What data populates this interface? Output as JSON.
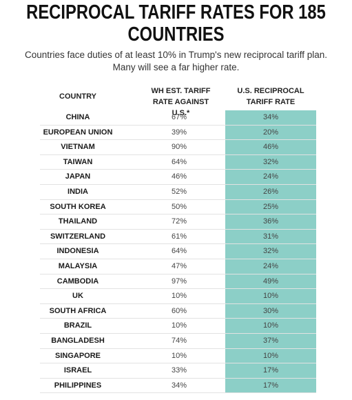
{
  "header": {
    "title": "RECIPROCAL TARIFF RATES FOR 185 COUNTRIES",
    "subtitle": "Countries face duties of at least 10% in Trump's new reciprocal tariff plan. Many will see a far higher rate."
  },
  "table": {
    "columns": [
      "COUNTRY",
      "WH EST. TARIFF RATE AGAINST U.S.*",
      "U.S. RECIPROCAL TARIFF RATE"
    ],
    "rows": [
      [
        "CHINA",
        "67%",
        "34%"
      ],
      [
        "EUROPEAN UNION",
        "39%",
        "20%"
      ],
      [
        "VIETNAM",
        "90%",
        "46%"
      ],
      [
        "TAIWAN",
        "64%",
        "32%"
      ],
      [
        "JAPAN",
        "46%",
        "24%"
      ],
      [
        "INDIA",
        "52%",
        "26%"
      ],
      [
        "SOUTH KOREA",
        "50%",
        "25%"
      ],
      [
        "THAILAND",
        "72%",
        "36%"
      ],
      [
        "SWITZERLAND",
        "61%",
        "31%"
      ],
      [
        "INDONESIA",
        "64%",
        "32%"
      ],
      [
        "MALAYSIA",
        "47%",
        "24%"
      ],
      [
        "CAMBODIA",
        "97%",
        "49%"
      ],
      [
        "UK",
        "10%",
        "10%"
      ],
      [
        "SOUTH AFRICA",
        "60%",
        "30%"
      ],
      [
        "BRAZIL",
        "10%",
        "10%"
      ],
      [
        "BANGLADESH",
        "74%",
        "37%"
      ],
      [
        "SINGAPORE",
        "10%",
        "10%"
      ],
      [
        "ISRAEL",
        "33%",
        "17%"
      ],
      [
        "PHILIPPINES",
        "34%",
        "17%"
      ]
    ]
  }
}
